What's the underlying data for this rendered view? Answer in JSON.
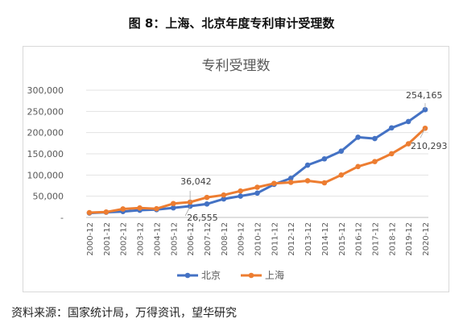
{
  "figure_title": "图 8：上海、北京年度专利审计受理数",
  "source_note": "资料来源：国家统计局，万得资讯，望华研究",
  "chart_data": {
    "type": "line",
    "title": "专利受理数",
    "xlabel": "",
    "ylabel": "",
    "categories": [
      "2000-12",
      "2001-12",
      "2002-12",
      "2003-12",
      "2004-12",
      "2005-12",
      "2006-12",
      "2007-12",
      "2008-12",
      "2009-12",
      "2010-12",
      "2011-12",
      "2012-12",
      "2013-12",
      "2014-12",
      "2015-12",
      "2016-12",
      "2017-12",
      "2018-12",
      "2019-12",
      "2020-12"
    ],
    "ylim": [
      0,
      300000
    ],
    "yticks": [
      "-",
      "50,000",
      "100,000",
      "150,000",
      "200,000",
      "250,000",
      "300,000"
    ],
    "grid": true,
    "legend": "bottom",
    "series": [
      {
        "name": "北京",
        "color": "#4472c4",
        "values": [
          10344,
          12174,
          13842,
          17003,
          18402,
          22572,
          26555,
          31680,
          43508,
          50236,
          57296,
          77955,
          92305,
          123336,
          138111,
          156312,
          189129,
          185928,
          211212,
          226113,
          254165
        ]
      },
      {
        "name": "上海",
        "color": "#ed7d31",
        "values": [
          11337,
          12777,
          19970,
          22374,
          20471,
          32741,
          36042,
          47205,
          52835,
          62241,
          71196,
          80215,
          82682,
          86450,
          81664,
          100006,
          119937,
          131746,
          150233,
          173586,
          210293
        ]
      }
    ],
    "annotations": [
      {
        "series": 0,
        "index": 6,
        "text": "26,555"
      },
      {
        "series": 1,
        "index": 6,
        "text": "36,042"
      },
      {
        "series": 0,
        "index": 20,
        "text": "254,165"
      },
      {
        "series": 1,
        "index": 20,
        "text": "210,293"
      }
    ]
  }
}
